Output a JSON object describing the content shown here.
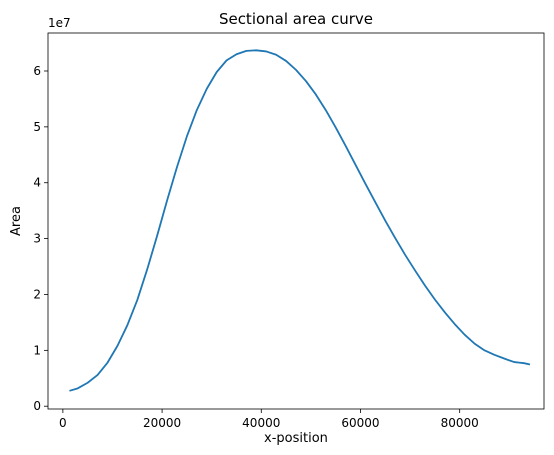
{
  "chart_data": {
    "type": "line",
    "title": "Sectional area curve",
    "xlabel": "x-position",
    "ylabel": "Area",
    "y_offset_text": "1e7",
    "xlim": [
      -3000,
      97000
    ],
    "ylim": [
      -500000,
      66800000
    ],
    "x_ticks": [
      0,
      20000,
      40000,
      60000,
      80000
    ],
    "x_tick_labels": [
      "0",
      "20000",
      "40000",
      "60000",
      "80000"
    ],
    "y_ticks": [
      0,
      10000000,
      20000000,
      30000000,
      40000000,
      50000000,
      60000000
    ],
    "y_tick_labels": [
      "0",
      "1",
      "2",
      "3",
      "4",
      "5",
      "6"
    ],
    "grid": false,
    "series": [
      {
        "color": "#1f77b4",
        "x": [
          1500,
          3000,
          5000,
          7000,
          9000,
          11000,
          13000,
          15000,
          17000,
          19000,
          21000,
          23000,
          25000,
          27000,
          29000,
          31000,
          33000,
          35000,
          37000,
          39000,
          41000,
          43000,
          45000,
          47000,
          49000,
          51000,
          53000,
          55000,
          57000,
          59000,
          61000,
          63000,
          65000,
          67000,
          69000,
          71000,
          73000,
          75000,
          77000,
          79000,
          81000,
          83000,
          85000,
          87000,
          88500,
          90000,
          91000,
          92000,
          93000,
          94000
        ],
        "y": [
          2800000,
          3200000,
          4200000,
          5600000,
          7800000,
          10800000,
          14500000,
          19000000,
          24500000,
          30500000,
          36800000,
          42800000,
          48300000,
          53000000,
          56800000,
          59800000,
          61900000,
          63000000,
          63600000,
          63700000,
          63500000,
          62900000,
          61800000,
          60200000,
          58200000,
          55800000,
          53000000,
          49900000,
          46600000,
          43200000,
          39800000,
          36500000,
          33200000,
          30100000,
          27100000,
          24300000,
          21600000,
          19100000,
          16800000,
          14700000,
          12800000,
          11200000,
          10000000,
          9200000,
          8700000,
          8200000,
          7900000,
          7800000,
          7700000,
          7500000
        ]
      }
    ]
  }
}
